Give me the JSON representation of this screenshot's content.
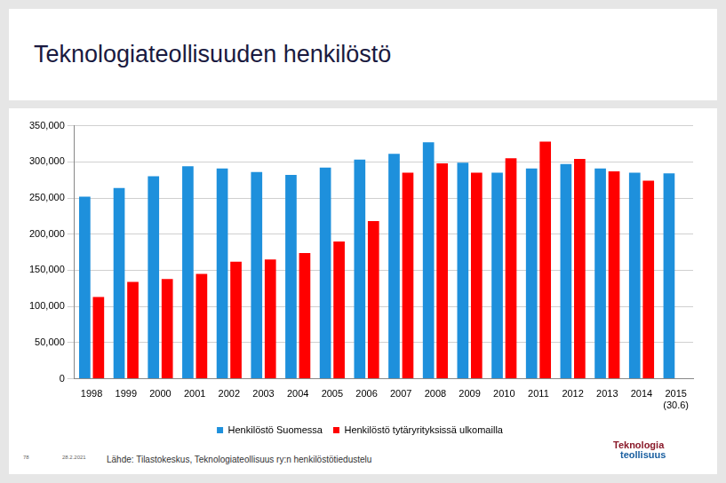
{
  "chart_data": {
    "type": "bar",
    "title": "Teknologiateollisuuden henkilöstö",
    "categories": [
      "1998",
      "1999",
      "2000",
      "2001",
      "2002",
      "2003",
      "2004",
      "2005",
      "2006",
      "2007",
      "2008",
      "2009",
      "2010",
      "2011",
      "2012",
      "2013",
      "2014",
      "2015 (30.6)"
    ],
    "series": [
      {
        "name": "Henkilöstö Suomessa",
        "color": "#1e90dc",
        "values": [
          252000,
          264000,
          280000,
          294000,
          291000,
          286000,
          282000,
          292000,
          303000,
          311000,
          327000,
          299000,
          285000,
          291000,
          297000,
          291000,
          285000,
          284000
        ]
      },
      {
        "name": "Henkilöstö tytäryrityksissä ulkomailla",
        "color": "#ff0000",
        "values": [
          113000,
          134000,
          138000,
          145000,
          162000,
          165000,
          174000,
          190000,
          218000,
          285000,
          298000,
          285000,
          305000,
          328000,
          304000,
          287000,
          274000,
          null
        ]
      }
    ],
    "ylim": [
      0,
      350000
    ],
    "yticks": [
      0,
      {
        "value": 50000,
        "label": "50,000"
      },
      {
        "value": 100000,
        "label": "100,000"
      },
      {
        "value": 150000,
        "label": "150,000"
      },
      {
        "value": 200000,
        "label": "200,000"
      },
      {
        "value": 250000,
        "label": "250,000"
      },
      {
        "value": 300000,
        "label": "300,000"
      },
      {
        "value": 350000,
        "label": "350,000"
      }
    ],
    "grid": true,
    "legend": "bottom"
  },
  "slide": {
    "page_number": "78",
    "date": "28.2.2021",
    "source": "Lähde: Tilastokeskus, Teknologiateollisuus ry:n henkilöstötiedustelu",
    "logo": [
      "Teknologia",
      "teollisuus"
    ]
  }
}
